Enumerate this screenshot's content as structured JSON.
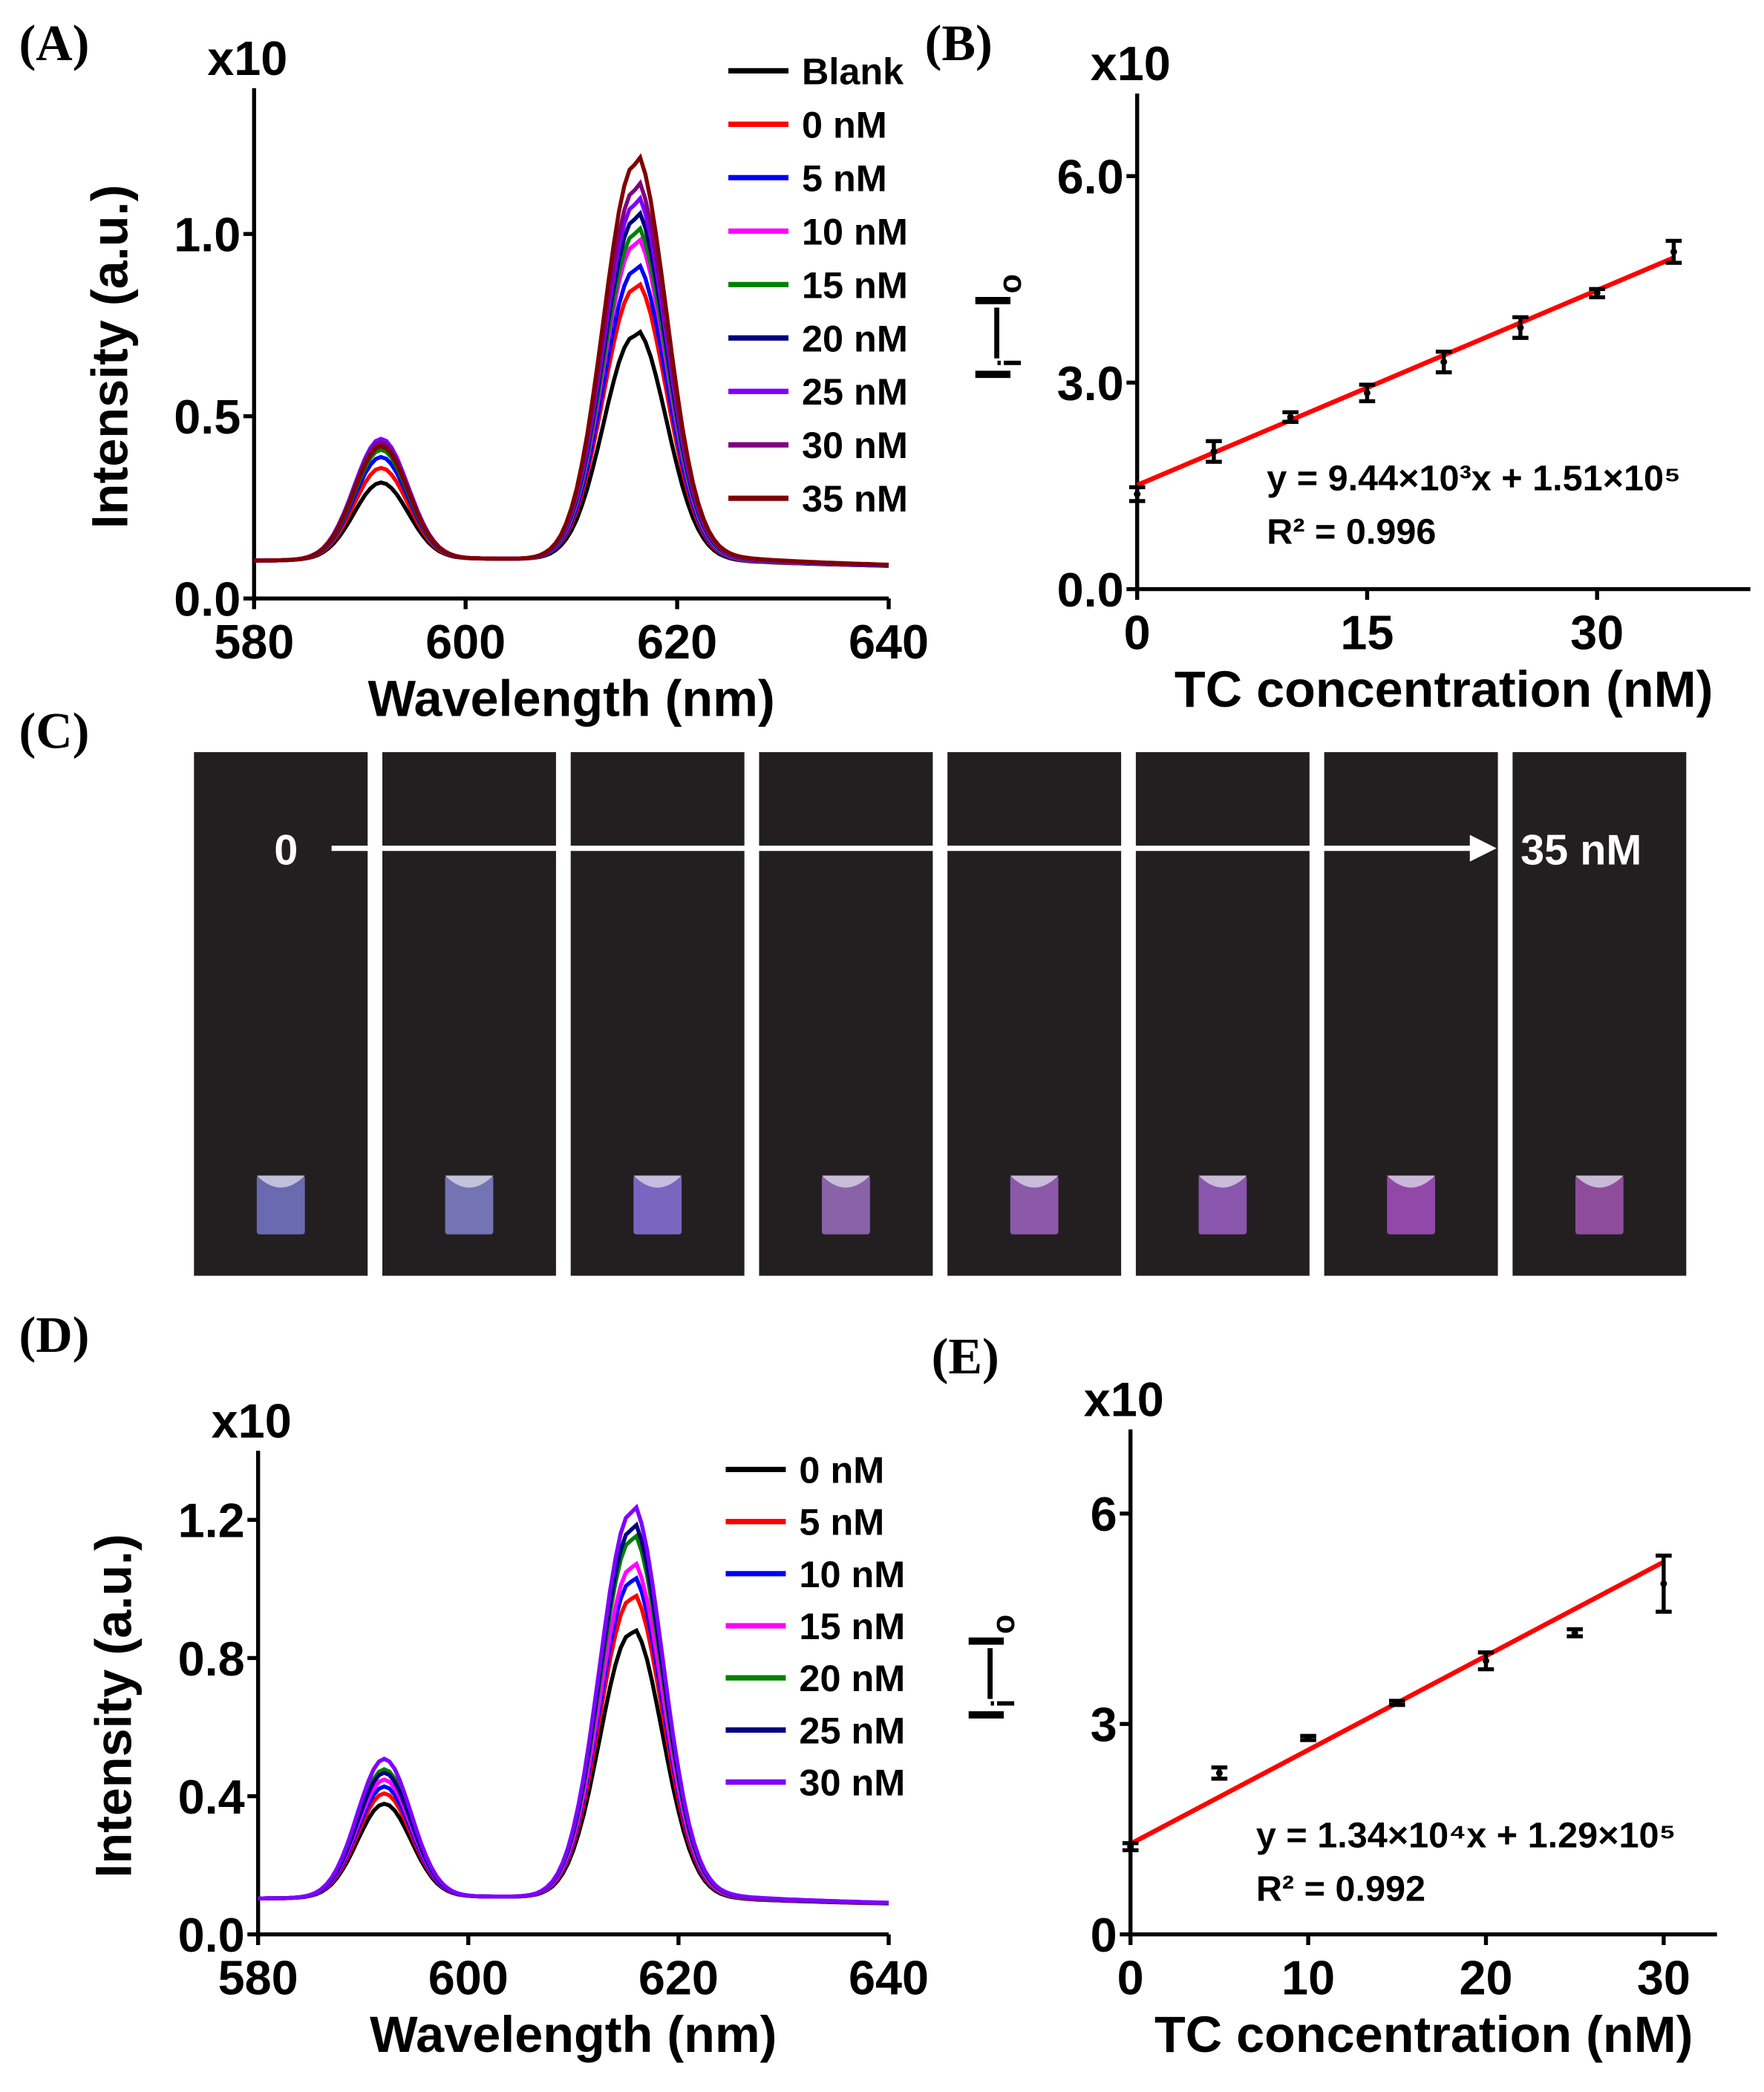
{
  "panels": {
    "A": "(A)",
    "B": "(B)",
    "C": "(C)",
    "D": "(D)",
    "E": "(E)"
  },
  "chart_data": [
    {
      "id": "A",
      "type": "line",
      "xlabel": "Wavelength (nm)",
      "ylabel": "Intensity (a.u.)",
      "multiplier": "x10",
      "multiplier_exp": "6",
      "xlim": [
        580,
        640
      ],
      "ylim": [
        0,
        1.4
      ],
      "xticks": [
        580,
        600,
        620,
        640
      ],
      "yticks": [
        0.0,
        0.5,
        1.0
      ],
      "ytick_labels": [
        "0.0",
        "0.5",
        "1.0"
      ],
      "peak1_nm": 592,
      "peak2_nm": 616,
      "baseline": 0.1,
      "series": [
        {
          "name": "Blank",
          "color": "#000000",
          "peak1": 0.31,
          "peak2": 0.72
        },
        {
          "name": "0 nM",
          "color": "#ff0000",
          "peak1": 0.35,
          "peak2": 0.85
        },
        {
          "name": "5 nM",
          "color": "#0000ff",
          "peak1": 0.38,
          "peak2": 0.9
        },
        {
          "name": "10 nM",
          "color": "#ff00ff",
          "peak1": 0.42,
          "peak2": 0.97
        },
        {
          "name": "15 nM",
          "color": "#008000",
          "peak1": 0.4,
          "peak2": 1.0
        },
        {
          "name": "20 nM",
          "color": "#000080",
          "peak1": 0.41,
          "peak2": 1.04
        },
        {
          "name": "25 nM",
          "color": "#8000ff",
          "peak1": 0.43,
          "peak2": 1.08
        },
        {
          "name": "30 nM",
          "color": "#800080",
          "peak1": 0.42,
          "peak2": 1.12
        },
        {
          "name": "35 nM",
          "color": "#800000",
          "peak1": 0.41,
          "peak2": 1.19
        }
      ]
    },
    {
      "id": "B",
      "type": "scatter",
      "xlabel": "TC concentration (nM)",
      "ylabel": "Ii—Io",
      "multiplier": "x10",
      "multiplier_exp": "5",
      "xlim": [
        0,
        40
      ],
      "ylim": [
        0,
        7.2
      ],
      "xticks": [
        0,
        15,
        30
      ],
      "yticks": [
        0,
        3,
        6
      ],
      "ytick_labels": [
        "0.0",
        "3.0",
        "6.0"
      ],
      "x": [
        0,
        5,
        10,
        15,
        20,
        25,
        30,
        35
      ],
      "y": [
        1.38,
        2.0,
        2.5,
        2.85,
        3.3,
        3.8,
        4.3,
        4.9
      ],
      "err": [
        0.1,
        0.15,
        0.07,
        0.12,
        0.15,
        0.15,
        0.06,
        0.16
      ],
      "fit": {
        "slope": 0.0944,
        "intercept": 1.51,
        "color": "#ff0000"
      },
      "equation": "y = 9.44×10³x + 1.51×10⁵",
      "r2": "R² = 0.996"
    },
    {
      "id": "D",
      "type": "line",
      "xlabel": "Wavelength (nm)",
      "ylabel": "Intensity (a.u.)",
      "multiplier": "x10",
      "multiplier_exp": "6",
      "xlim": [
        580,
        640
      ],
      "ylim": [
        0,
        1.4
      ],
      "xticks": [
        580,
        600,
        620,
        640
      ],
      "yticks": [
        0.0,
        0.4,
        0.8,
        1.2
      ],
      "ytick_labels": [
        "0.0",
        "0.4",
        "0.8",
        "1.2"
      ],
      "peak1_nm": 592,
      "peak2_nm": 615.5,
      "baseline": 0.1,
      "series": [
        {
          "name": "0 nM",
          "color": "#000000",
          "peak1": 0.37,
          "peak2": 0.87
        },
        {
          "name": "5 nM",
          "color": "#ff0000",
          "peak1": 0.4,
          "peak2": 0.97
        },
        {
          "name": "10 nM",
          "color": "#0000ff",
          "peak1": 0.42,
          "peak2": 1.02
        },
        {
          "name": "15 nM",
          "color": "#ff00ff",
          "peak1": 0.44,
          "peak2": 1.06
        },
        {
          "name": "20 nM",
          "color": "#008000",
          "peak1": 0.47,
          "peak2": 1.14
        },
        {
          "name": "25 nM",
          "color": "#000080",
          "peak1": 0.46,
          "peak2": 1.17
        },
        {
          "name": "30 nM",
          "color": "#8000ff",
          "peak1": 0.5,
          "peak2": 1.22
        }
      ]
    },
    {
      "id": "E",
      "type": "scatter",
      "xlabel": "TC concentration (nM)",
      "ylabel": "Ii—Io",
      "multiplier": "x10",
      "multiplier_exp": "5",
      "xlim": [
        0,
        33
      ],
      "ylim": [
        0,
        7.2
      ],
      "xticks": [
        0,
        10,
        20,
        30
      ],
      "yticks": [
        0,
        3,
        6
      ],
      "ytick_labels": [
        "0",
        "3",
        "6"
      ],
      "x": [
        0,
        5,
        10,
        15,
        20,
        25,
        30
      ],
      "y": [
        1.25,
        2.3,
        2.8,
        3.3,
        3.9,
        4.3,
        5.0
      ],
      "err": [
        0.05,
        0.08,
        0.03,
        0.03,
        0.12,
        0.05,
        0.4
      ],
      "fit": {
        "slope": 0.134,
        "intercept": 1.29,
        "color": "#ff0000"
      },
      "equation": "y = 1.34×10⁴x + 1.29×10⁵",
      "r2": "R² = 0.992"
    }
  ],
  "photo": {
    "start_label": "0",
    "end_label": "35 nM",
    "cuvette_colors": [
      "#6a6ab0",
      "#7474b4",
      "#7a66c0",
      "#8a62a8",
      "#8c58a8",
      "#8a55ac",
      "#9248a8",
      "#8e4c9c"
    ]
  }
}
